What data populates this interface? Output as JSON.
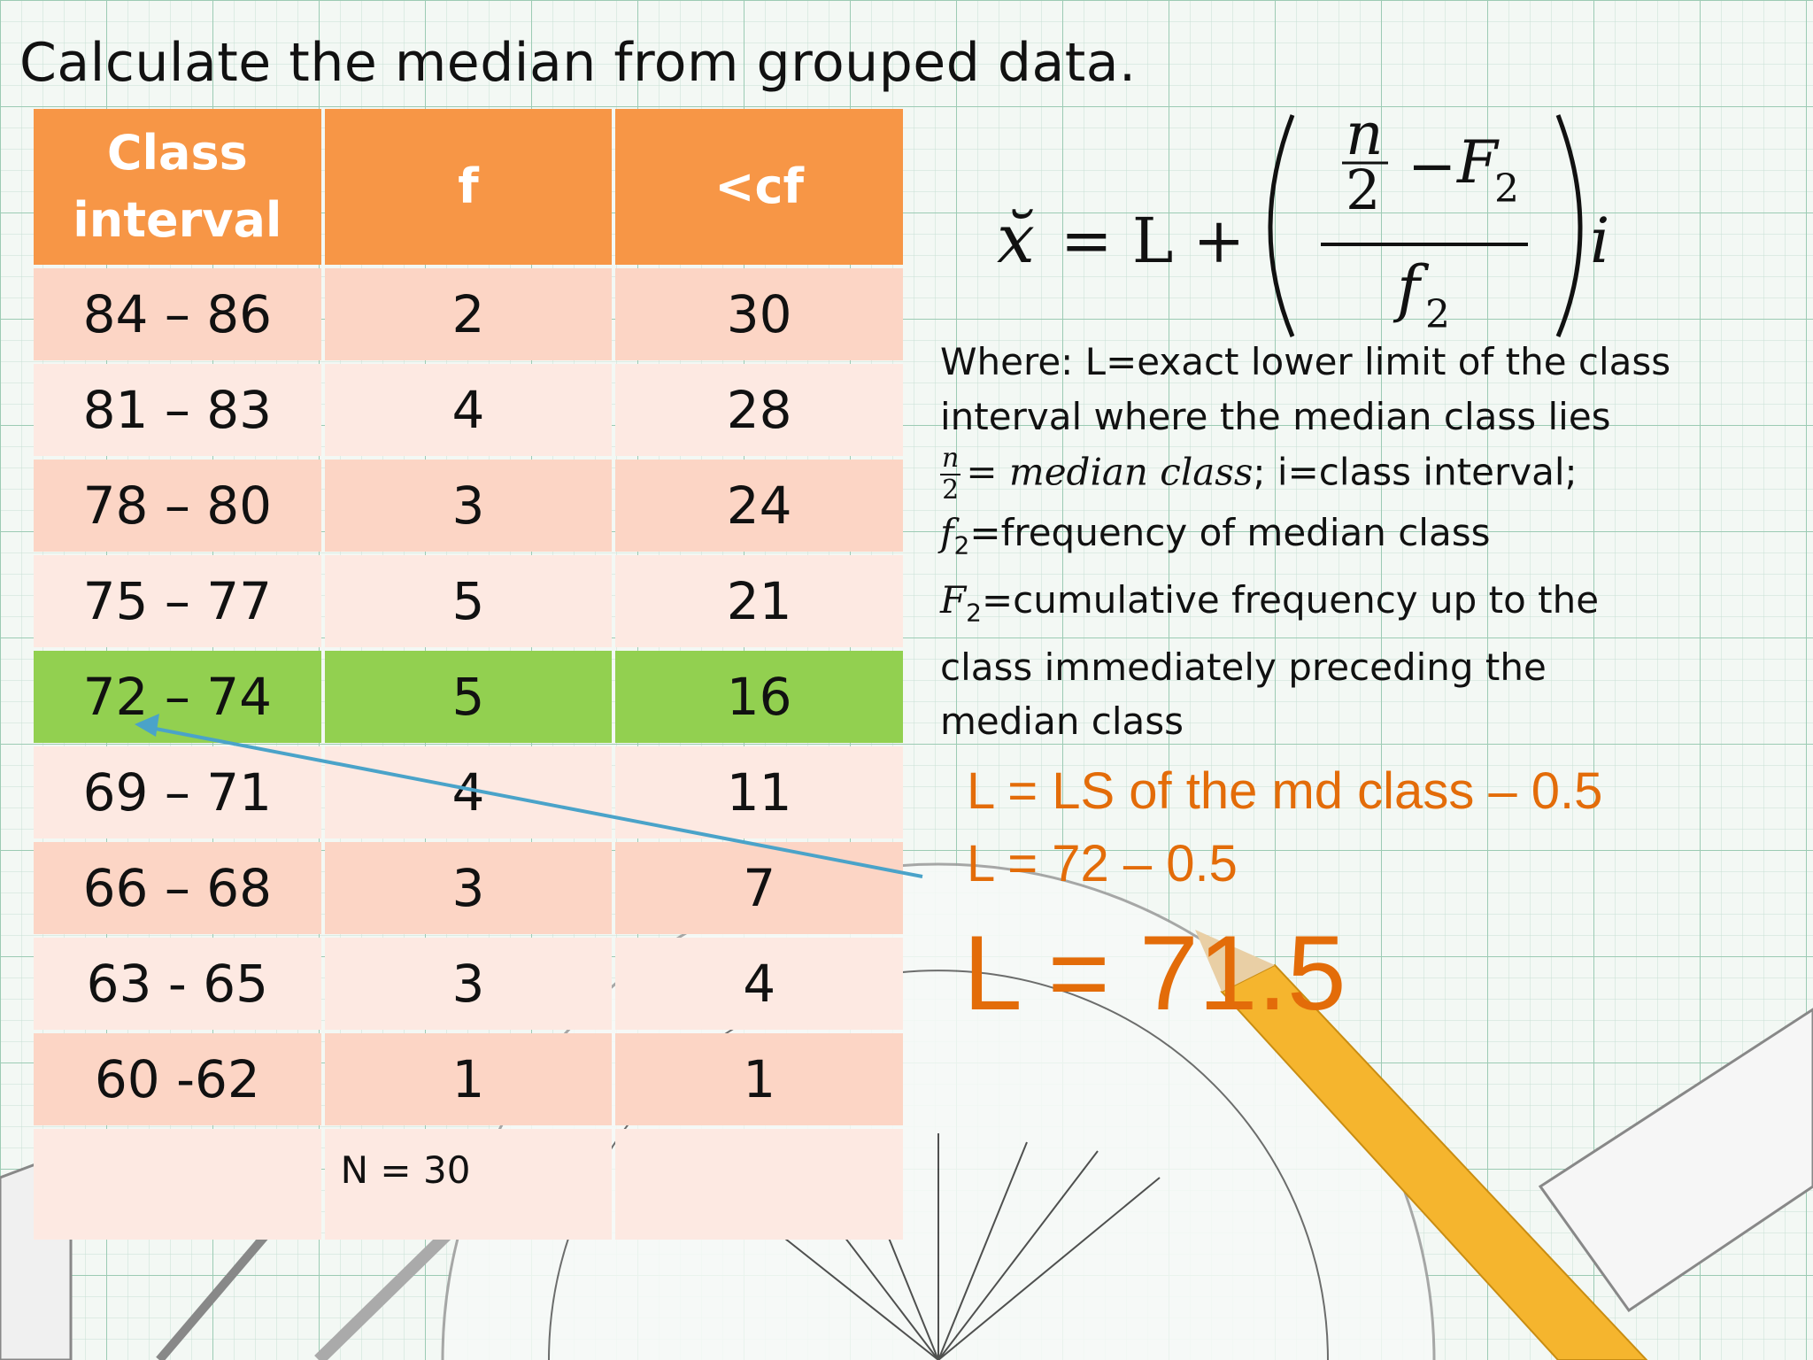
{
  "title": "Calculate the median from grouped data.",
  "table": {
    "headers": [
      "Class interval",
      "f",
      "<cf"
    ],
    "header_lines": [
      "Class",
      "interval"
    ],
    "rows": [
      {
        "interval": "84 – 86",
        "f": "2",
        "cf": "30"
      },
      {
        "interval": "81 – 83",
        "f": "4",
        "cf": "28"
      },
      {
        "interval": "78 – 80",
        "f": "3",
        "cf": "24"
      },
      {
        "interval": "75 – 77",
        "f": "5",
        "cf": "21"
      },
      {
        "interval": "72 – 74",
        "f": "5",
        "cf": "16"
      },
      {
        "interval": "69 – 71",
        "f": "4",
        "cf": "11"
      },
      {
        "interval": "66 – 68",
        "f": "3",
        "cf": "7"
      },
      {
        "interval": "63 - 65",
        "f": "3",
        "cf": "4"
      },
      {
        "interval": "60 -62",
        "f": "1",
        "cf": "1"
      }
    ],
    "highlight_row": 4,
    "total_label": "N = 30"
  },
  "formula": {
    "lhs": "x̆",
    "eq": "= L +",
    "num_n": "n",
    "num_2": "2",
    "minus": "−",
    "F": "F",
    "F_sub": "2",
    "den_f": "f",
    "den_sub": "2",
    "i": "i"
  },
  "where": {
    "line1": "Where: L=exact lower limit of the class",
    "line2": "interval where the median class lies",
    "frac_n": "n",
    "frac_2": "2",
    "median_eq": "= median class",
    "line3_tail": "; i=class interval;",
    "f2_sym": "f",
    "f2_sub": "2",
    "f2_text": "=frequency of median class",
    "F2_sym": "F",
    "F2_sub": "2",
    "F2_text": "=cumulative frequency up to the",
    "line6": "class immediately preceding the",
    "line7": "median class"
  },
  "calc": {
    "line1": "L = LS of the md class – 0.5",
    "line2": "L = 72 – 0.5",
    "result": "L = 71.5"
  },
  "colors": {
    "header": "#f79646",
    "row_odd": "#fcd5c5",
    "row_even": "#fde9e2",
    "highlight": "#92d050",
    "accent_text": "#e36c09",
    "arrow": "#4aa3c9",
    "pencil": "#f5b52e"
  }
}
